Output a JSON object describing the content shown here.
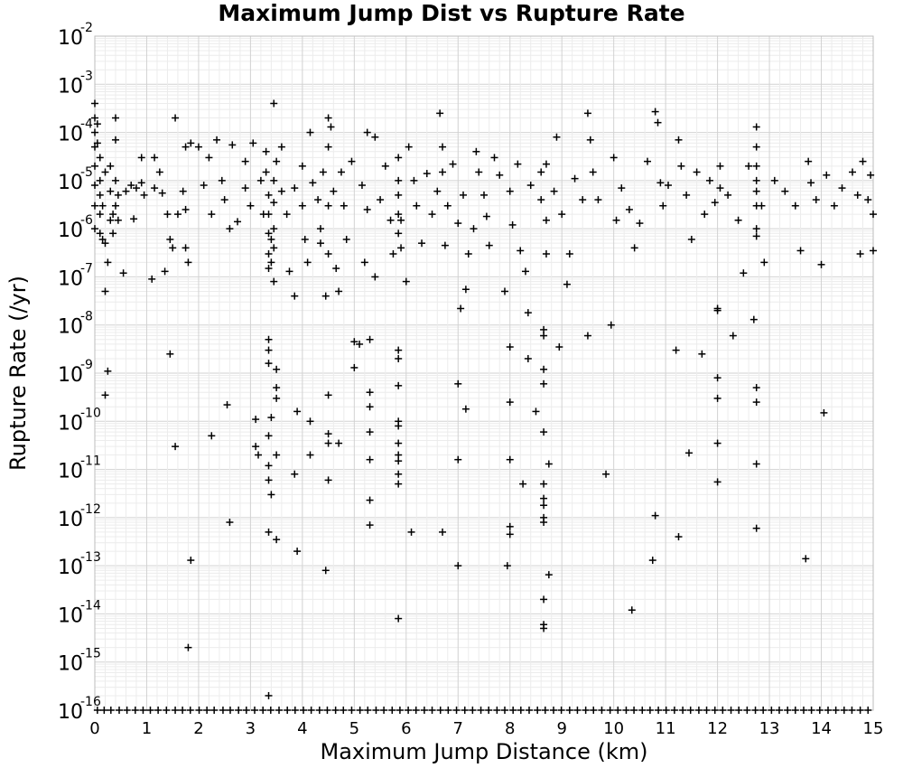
{
  "chart_data": {
    "type": "scatter",
    "title": "Maximum Jump Dist vs Rupture Rate",
    "xlabel": "Maximum Jump Distance (km)",
    "ylabel": "Rupture Rate (/yr)",
    "xlim": [
      0,
      15
    ],
    "ylim": [
      1e-16,
      0.01
    ],
    "yscale": "log",
    "grid": true,
    "legend": "none",
    "marker": "plus",
    "marker_color": "#000000",
    "x_ticks": [
      "0",
      "1",
      "2",
      "3",
      "4",
      "5",
      "6",
      "7",
      "8",
      "9",
      "10",
      "11",
      "12",
      "13",
      "14",
      "15"
    ],
    "y_ticks": [
      {
        "base": "10",
        "exp": "-16"
      },
      {
        "base": "10",
        "exp": "-15"
      },
      {
        "base": "10",
        "exp": "-14"
      },
      {
        "base": "10",
        "exp": "-13"
      },
      {
        "base": "10",
        "exp": "-12"
      },
      {
        "base": "10",
        "exp": "-11"
      },
      {
        "base": "10",
        "exp": "-10"
      },
      {
        "base": "10",
        "exp": "-9"
      },
      {
        "base": "10",
        "exp": "-8"
      },
      {
        "base": "10",
        "exp": "-7"
      },
      {
        "base": "10",
        "exp": "-6"
      },
      {
        "base": "10",
        "exp": "-5"
      },
      {
        "base": "10",
        "exp": "-4"
      },
      {
        "base": "10",
        "exp": "-3"
      },
      {
        "base": "10",
        "exp": "-2"
      }
    ],
    "points": [
      [
        0.0,
        0.0004
      ],
      [
        0.0,
        0.0002
      ],
      [
        0.0,
        0.0001
      ],
      [
        0.0,
        5e-05
      ],
      [
        0.0,
        2e-05
      ],
      [
        0.0,
        8e-06
      ],
      [
        0.0,
        3e-06
      ],
      [
        0.0,
        1e-06
      ],
      [
        0.05,
        0.00015
      ],
      [
        0.05,
        6e-05
      ],
      [
        0.1,
        3e-05
      ],
      [
        0.1,
        1e-05
      ],
      [
        0.1,
        5e-06
      ],
      [
        0.1,
        2e-06
      ],
      [
        0.1,
        8e-07
      ],
      [
        0.15,
        6e-07
      ],
      [
        0.15,
        3e-06
      ],
      [
        0.2,
        1.5e-05
      ],
      [
        0.2,
        5e-07
      ],
      [
        0.2,
        5e-08
      ],
      [
        0.2,
        3.5e-10
      ],
      [
        0.25,
        1.1e-09
      ],
      [
        0.25,
        2e-07
      ],
      [
        0.3,
        2e-05
      ],
      [
        0.3,
        6e-06
      ],
      [
        0.3,
        1.5e-06
      ],
      [
        0.35,
        8e-07
      ],
      [
        0.35,
        2e-06
      ],
      [
        0.4,
        0.0002
      ],
      [
        0.4,
        7e-05
      ],
      [
        0.4,
        1e-05
      ],
      [
        0.4,
        3e-06
      ],
      [
        0.45,
        1.5e-06
      ],
      [
        0.45,
        5e-06
      ],
      [
        0.55,
        1.2e-07
      ],
      [
        0.6,
        6e-06
      ],
      [
        0.7,
        8e-06
      ],
      [
        0.75,
        1.6e-06
      ],
      [
        0.8,
        7e-06
      ],
      [
        0.9,
        3e-05
      ],
      [
        0.9,
        9e-06
      ],
      [
        0.95,
        5e-06
      ],
      [
        1.1,
        9e-08
      ],
      [
        1.15,
        3e-05
      ],
      [
        1.15,
        7e-06
      ],
      [
        1.25,
        1.5e-05
      ],
      [
        1.3,
        5.5e-06
      ],
      [
        1.35,
        1.3e-07
      ],
      [
        1.4,
        2e-06
      ],
      [
        1.45,
        6e-07
      ],
      [
        1.45,
        2.5e-09
      ],
      [
        1.5,
        4e-07
      ],
      [
        1.55,
        0.0002
      ],
      [
        1.55,
        3e-11
      ],
      [
        1.6,
        2e-06
      ],
      [
        1.7,
        6e-06
      ],
      [
        1.75,
        5e-05
      ],
      [
        1.75,
        2.5e-06
      ],
      [
        1.75,
        4e-07
      ],
      [
        1.8,
        2e-07
      ],
      [
        1.8,
        2e-15
      ],
      [
        1.85,
        6e-05
      ],
      [
        1.85,
        1.3e-13
      ],
      [
        2.0,
        5e-05
      ],
      [
        2.1,
        8e-06
      ],
      [
        2.2,
        3e-05
      ],
      [
        2.25,
        2e-06
      ],
      [
        2.25,
        5e-11
      ],
      [
        2.35,
        7e-05
      ],
      [
        2.45,
        1e-05
      ],
      [
        2.5,
        4e-06
      ],
      [
        2.55,
        2.2e-10
      ],
      [
        2.6,
        1e-06
      ],
      [
        2.6,
        8e-13
      ],
      [
        2.65,
        5.5e-05
      ],
      [
        2.75,
        1.4e-06
      ],
      [
        2.9,
        2.5e-05
      ],
      [
        2.9,
        7e-06
      ],
      [
        3.0,
        3e-06
      ],
      [
        3.05,
        6e-05
      ],
      [
        3.1,
        1.1e-10
      ],
      [
        3.1,
        3e-11
      ],
      [
        3.15,
        2e-11
      ],
      [
        3.2,
        1e-05
      ],
      [
        3.25,
        2e-06
      ],
      [
        3.3,
        4e-05
      ],
      [
        3.3,
        1.5e-05
      ],
      [
        3.35,
        5e-06
      ],
      [
        3.35,
        2e-06
      ],
      [
        3.35,
        8e-07
      ],
      [
        3.35,
        3e-07
      ],
      [
        3.35,
        1.5e-07
      ],
      [
        3.35,
        5e-09
      ],
      [
        3.35,
        3e-09
      ],
      [
        3.35,
        1.6e-09
      ],
      [
        3.35,
        5e-11
      ],
      [
        3.35,
        1.2e-11
      ],
      [
        3.35,
        6e-12
      ],
      [
        3.35,
        5e-13
      ],
      [
        3.35,
        2e-16
      ],
      [
        3.4,
        6e-07
      ],
      [
        3.4,
        2e-07
      ],
      [
        3.4,
        1.2e-10
      ],
      [
        3.4,
        3e-12
      ],
      [
        3.45,
        0.0004
      ],
      [
        3.45,
        1e-05
      ],
      [
        3.45,
        3.5e-06
      ],
      [
        3.45,
        1e-06
      ],
      [
        3.45,
        4e-07
      ],
      [
        3.45,
        8e-08
      ],
      [
        3.5,
        2.5e-05
      ],
      [
        3.5,
        1.2e-09
      ],
      [
        3.5,
        5e-10
      ],
      [
        3.5,
        3e-10
      ],
      [
        3.5,
        2e-11
      ],
      [
        3.5,
        3.5e-13
      ],
      [
        3.6,
        5e-05
      ],
      [
        3.6,
        6e-06
      ],
      [
        3.7,
        2e-06
      ],
      [
        3.75,
        1.3e-07
      ],
      [
        3.85,
        7e-06
      ],
      [
        3.85,
        4e-08
      ],
      [
        3.85,
        8e-12
      ],
      [
        3.9,
        1.6e-10
      ],
      [
        3.9,
        2e-13
      ],
      [
        4.0,
        2e-05
      ],
      [
        4.0,
        3e-06
      ],
      [
        4.05,
        6e-07
      ],
      [
        4.1,
        2e-07
      ],
      [
        4.15,
        0.0001
      ],
      [
        4.15,
        1e-10
      ],
      [
        4.15,
        2e-11
      ],
      [
        4.2,
        9e-06
      ],
      [
        4.3,
        4e-06
      ],
      [
        4.35,
        1e-06
      ],
      [
        4.35,
        5e-07
      ],
      [
        4.4,
        1.5e-05
      ],
      [
        4.45,
        4e-08
      ],
      [
        4.45,
        8e-14
      ],
      [
        4.5,
        0.0002
      ],
      [
        4.5,
        5e-05
      ],
      [
        4.5,
        3e-06
      ],
      [
        4.5,
        3e-07
      ],
      [
        4.5,
        3.5e-10
      ],
      [
        4.5,
        5.5e-11
      ],
      [
        4.5,
        3.5e-11
      ],
      [
        4.5,
        6e-12
      ],
      [
        4.55,
        0.00013
      ],
      [
        4.6,
        6e-06
      ],
      [
        4.65,
        1.5e-07
      ],
      [
        4.7,
        5e-08
      ],
      [
        4.7,
        3.5e-11
      ],
      [
        4.75,
        1.5e-05
      ],
      [
        4.8,
        3e-06
      ],
      [
        4.85,
        6e-07
      ],
      [
        4.95,
        2.5e-05
      ],
      [
        5.0,
        1.3e-09
      ],
      [
        5.0,
        4.5e-09
      ],
      [
        5.1,
        4e-09
      ],
      [
        5.15,
        8e-06
      ],
      [
        5.2,
        2e-07
      ],
      [
        5.25,
        0.0001
      ],
      [
        5.25,
        2.5e-06
      ],
      [
        5.3,
        5e-09
      ],
      [
        5.3,
        4e-10
      ],
      [
        5.3,
        2e-10
      ],
      [
        5.3,
        6e-11
      ],
      [
        5.3,
        1.6e-11
      ],
      [
        5.3,
        2.3e-12
      ],
      [
        5.3,
        7e-13
      ],
      [
        5.4,
        8e-05
      ],
      [
        5.4,
        1e-07
      ],
      [
        5.5,
        4e-06
      ],
      [
        5.6,
        2e-05
      ],
      [
        5.7,
        1.5e-06
      ],
      [
        5.75,
        3e-07
      ],
      [
        5.85,
        3e-05
      ],
      [
        5.85,
        1e-05
      ],
      [
        5.85,
        5e-06
      ],
      [
        5.85,
        2e-06
      ],
      [
        5.85,
        8e-07
      ],
      [
        5.85,
        3e-09
      ],
      [
        5.85,
        2e-09
      ],
      [
        5.85,
        5.5e-10
      ],
      [
        5.85,
        1e-10
      ],
      [
        5.85,
        8e-11
      ],
      [
        5.85,
        3.5e-11
      ],
      [
        5.85,
        2e-11
      ],
      [
        5.85,
        1.5e-11
      ],
      [
        5.85,
        8e-12
      ],
      [
        5.85,
        5e-12
      ],
      [
        5.85,
        8e-15
      ],
      [
        5.9,
        1.5e-06
      ],
      [
        5.9,
        4e-07
      ],
      [
        6.0,
        8e-08
      ],
      [
        6.05,
        5e-05
      ],
      [
        6.1,
        5e-13
      ],
      [
        6.15,
        1e-05
      ],
      [
        6.2,
        3e-06
      ],
      [
        6.3,
        5e-07
      ],
      [
        6.4,
        1.4e-05
      ],
      [
        6.5,
        2e-06
      ],
      [
        6.6,
        6e-06
      ],
      [
        6.65,
        0.00025
      ],
      [
        6.7,
        5e-05
      ],
      [
        6.7,
        1.5e-05
      ],
      [
        6.7,
        5e-13
      ],
      [
        6.75,
        4.5e-07
      ],
      [
        6.8,
        3e-06
      ],
      [
        6.9,
        2.2e-05
      ],
      [
        7.0,
        1.3e-06
      ],
      [
        7.0,
        6e-10
      ],
      [
        7.0,
        1.6e-11
      ],
      [
        7.0,
        1e-13
      ],
      [
        7.05,
        2.2e-08
      ],
      [
        7.1,
        5e-06
      ],
      [
        7.15,
        5.5e-08
      ],
      [
        7.15,
        1.8e-10
      ],
      [
        7.2,
        3e-07
      ],
      [
        7.3,
        1e-06
      ],
      [
        7.35,
        4e-05
      ],
      [
        7.4,
        1.5e-05
      ],
      [
        7.5,
        5e-06
      ],
      [
        7.55,
        1.8e-06
      ],
      [
        7.6,
        4.5e-07
      ],
      [
        7.7,
        3e-05
      ],
      [
        7.8,
        1.3e-05
      ],
      [
        7.9,
        5e-08
      ],
      [
        7.95,
        1e-13
      ],
      [
        8.0,
        3.5e-09
      ],
      [
        8.0,
        2.5e-10
      ],
      [
        8.0,
        1.6e-11
      ],
      [
        8.0,
        6.5e-13
      ],
      [
        8.0,
        4.5e-13
      ],
      [
        8.0,
        6e-06
      ],
      [
        8.05,
        1.2e-06
      ],
      [
        8.15,
        2.2e-05
      ],
      [
        8.2,
        3.5e-07
      ],
      [
        8.25,
        5e-12
      ],
      [
        8.3,
        1.3e-07
      ],
      [
        8.35,
        1.8e-08
      ],
      [
        8.35,
        2e-09
      ],
      [
        8.4,
        8e-06
      ],
      [
        8.5,
        1.6e-10
      ],
      [
        8.6,
        1.5e-05
      ],
      [
        8.6,
        4e-06
      ],
      [
        8.65,
        8e-09
      ],
      [
        8.65,
        6e-09
      ],
      [
        8.65,
        1.2e-09
      ],
      [
        8.65,
        6e-10
      ],
      [
        8.65,
        6e-11
      ],
      [
        8.65,
        5e-12
      ],
      [
        8.65,
        2.5e-12
      ],
      [
        8.65,
        1.8e-12
      ],
      [
        8.65,
        1e-12
      ],
      [
        8.65,
        8e-13
      ],
      [
        8.65,
        2e-14
      ],
      [
        8.65,
        6e-15
      ],
      [
        8.65,
        5e-15
      ],
      [
        8.7,
        2.2e-05
      ],
      [
        8.7,
        1.5e-06
      ],
      [
        8.7,
        3e-07
      ],
      [
        8.75,
        1.3e-11
      ],
      [
        8.75,
        6.5e-14
      ],
      [
        8.85,
        6e-06
      ],
      [
        8.9,
        8e-05
      ],
      [
        8.95,
        3.5e-09
      ],
      [
        9.0,
        2e-06
      ],
      [
        9.1,
        7e-08
      ],
      [
        9.15,
        3e-07
      ],
      [
        9.25,
        1.1e-05
      ],
      [
        9.4,
        4e-06
      ],
      [
        9.5,
        6e-09
      ],
      [
        9.5,
        0.00025
      ],
      [
        9.55,
        7e-05
      ],
      [
        9.6,
        1.5e-05
      ],
      [
        9.7,
        4e-06
      ],
      [
        9.85,
        8e-12
      ],
      [
        9.95,
        1e-08
      ],
      [
        10.0,
        3e-05
      ],
      [
        10.05,
        1.5e-06
      ],
      [
        10.15,
        7e-06
      ],
      [
        10.3,
        2.5e-06
      ],
      [
        10.35,
        1.2e-14
      ],
      [
        10.4,
        4e-07
      ],
      [
        10.5,
        1.3e-06
      ],
      [
        10.65,
        2.5e-05
      ],
      [
        10.75,
        1.3e-13
      ],
      [
        10.8,
        1.1e-12
      ],
      [
        10.8,
        0.00027
      ],
      [
        10.85,
        0.00016
      ],
      [
        10.9,
        9e-06
      ],
      [
        10.95,
        3e-06
      ],
      [
        11.05,
        8e-06
      ],
      [
        11.2,
        3e-09
      ],
      [
        11.25,
        7e-05
      ],
      [
        11.25,
        4e-13
      ],
      [
        11.3,
        2e-05
      ],
      [
        11.4,
        5e-06
      ],
      [
        11.45,
        2.2e-11
      ],
      [
        11.5,
        6e-07
      ],
      [
        11.6,
        1.5e-05
      ],
      [
        11.7,
        2.5e-09
      ],
      [
        11.75,
        2e-06
      ],
      [
        11.85,
        1e-05
      ],
      [
        11.95,
        3.5e-06
      ],
      [
        12.0,
        2.2e-08
      ],
      [
        12.0,
        2e-08
      ],
      [
        12.0,
        8e-10
      ],
      [
        12.0,
        3e-10
      ],
      [
        12.0,
        3.5e-11
      ],
      [
        12.0,
        5.5e-12
      ],
      [
        12.05,
        7e-06
      ],
      [
        12.05,
        2e-05
      ],
      [
        12.2,
        5e-06
      ],
      [
        12.3,
        6e-09
      ],
      [
        12.4,
        1.5e-06
      ],
      [
        12.5,
        1.2e-07
      ],
      [
        12.6,
        2e-05
      ],
      [
        12.7,
        1.3e-08
      ],
      [
        12.75,
        0.00013
      ],
      [
        12.75,
        5e-05
      ],
      [
        12.75,
        2e-05
      ],
      [
        12.75,
        1e-05
      ],
      [
        12.75,
        6e-06
      ],
      [
        12.75,
        3e-06
      ],
      [
        12.75,
        1e-06
      ],
      [
        12.75,
        7e-07
      ],
      [
        12.75,
        5e-10
      ],
      [
        12.75,
        2.5e-10
      ],
      [
        12.75,
        1.3e-11
      ],
      [
        12.75,
        6e-13
      ],
      [
        12.85,
        3e-06
      ],
      [
        12.9,
        2e-07
      ],
      [
        13.1,
        1e-05
      ],
      [
        13.3,
        6e-06
      ],
      [
        13.5,
        3e-06
      ],
      [
        13.6,
        3.5e-07
      ],
      [
        13.7,
        1.4e-13
      ],
      [
        13.75,
        2.5e-05
      ],
      [
        13.8,
        9e-06
      ],
      [
        13.9,
        4e-06
      ],
      [
        14.0,
        1.8e-07
      ],
      [
        14.05,
        1.5e-10
      ],
      [
        14.1,
        1.3e-05
      ],
      [
        14.25,
        3e-06
      ],
      [
        14.4,
        7e-06
      ],
      [
        14.6,
        1.5e-05
      ],
      [
        14.7,
        5e-06
      ],
      [
        14.75,
        3e-07
      ],
      [
        14.8,
        2.5e-05
      ],
      [
        14.9,
        4e-06
      ],
      [
        14.95,
        1.3e-05
      ],
      [
        15.0,
        2e-06
      ],
      [
        15.0,
        3.5e-07
      ]
    ],
    "floor_points_x": [
      0.05,
      0.18,
      0.31,
      0.47,
      0.62,
      0.78,
      0.93,
      1.07,
      1.22,
      1.38,
      1.55,
      1.69,
      1.84,
      2.01,
      2.16,
      2.3,
      2.47,
      2.61,
      2.77,
      2.92,
      3.08,
      3.24,
      3.39,
      3.55,
      3.71,
      3.86,
      4.02,
      4.17,
      4.33,
      4.48,
      4.64,
      4.79,
      4.95,
      5.11,
      5.26,
      5.42,
      5.57,
      5.73,
      5.88,
      6.04,
      6.19,
      6.35,
      6.5,
      6.66,
      6.81,
      6.97,
      7.13,
      7.28,
      7.44,
      7.59,
      7.75,
      7.9,
      8.06,
      8.21,
      8.37,
      8.53,
      8.68,
      8.84,
      8.99,
      9.15,
      9.3,
      9.46,
      9.61,
      9.77,
      9.93,
      10.08,
      10.24,
      10.39,
      10.55,
      10.7,
      10.86,
      11.01,
      11.17,
      11.33,
      11.48,
      11.64,
      11.79,
      11.95,
      12.1,
      12.26,
      12.41,
      12.57,
      12.73,
      12.88,
      13.04,
      13.19,
      13.35,
      13.5,
      13.66,
      13.81,
      13.97,
      14.13,
      14.28,
      14.44,
      14.59,
      14.75,
      14.9
    ],
    "floor_value": 1e-16
  }
}
